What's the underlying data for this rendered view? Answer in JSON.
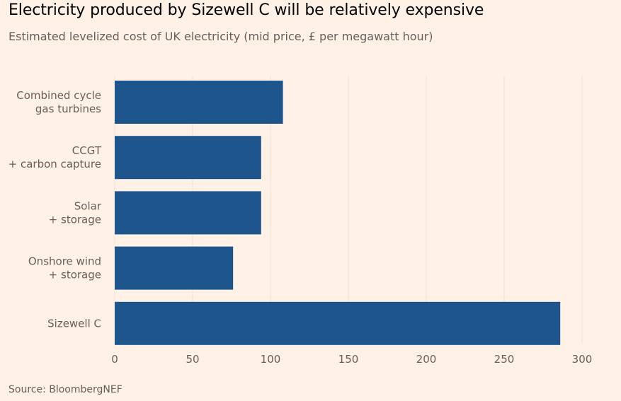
{
  "title": "Electricity produced by Sizewell C will be relatively expensive",
  "subtitle": "Estimated levelized cost of UK electricity (mid price, £ per megawatt hour)",
  "source": "Source: BloombergNEF",
  "colors": {
    "background": "#fff1e5",
    "bar": "#1e558c",
    "grid": "#ece1d8"
  },
  "chart_data": {
    "type": "bar",
    "orientation": "horizontal",
    "categories": [
      [
        "Combined cycle",
        "gas turbines"
      ],
      [
        "CCGT",
        "+ carbon capture"
      ],
      [
        "Solar",
        "+ storage"
      ],
      [
        "Onshore wind",
        "+ storage"
      ],
      [
        "Sizewell C"
      ]
    ],
    "values": [
      108,
      94,
      94,
      76,
      286
    ],
    "xlim": [
      0,
      300
    ],
    "xticks": [
      0,
      50,
      100,
      150,
      200,
      250,
      300
    ],
    "grid": true
  }
}
